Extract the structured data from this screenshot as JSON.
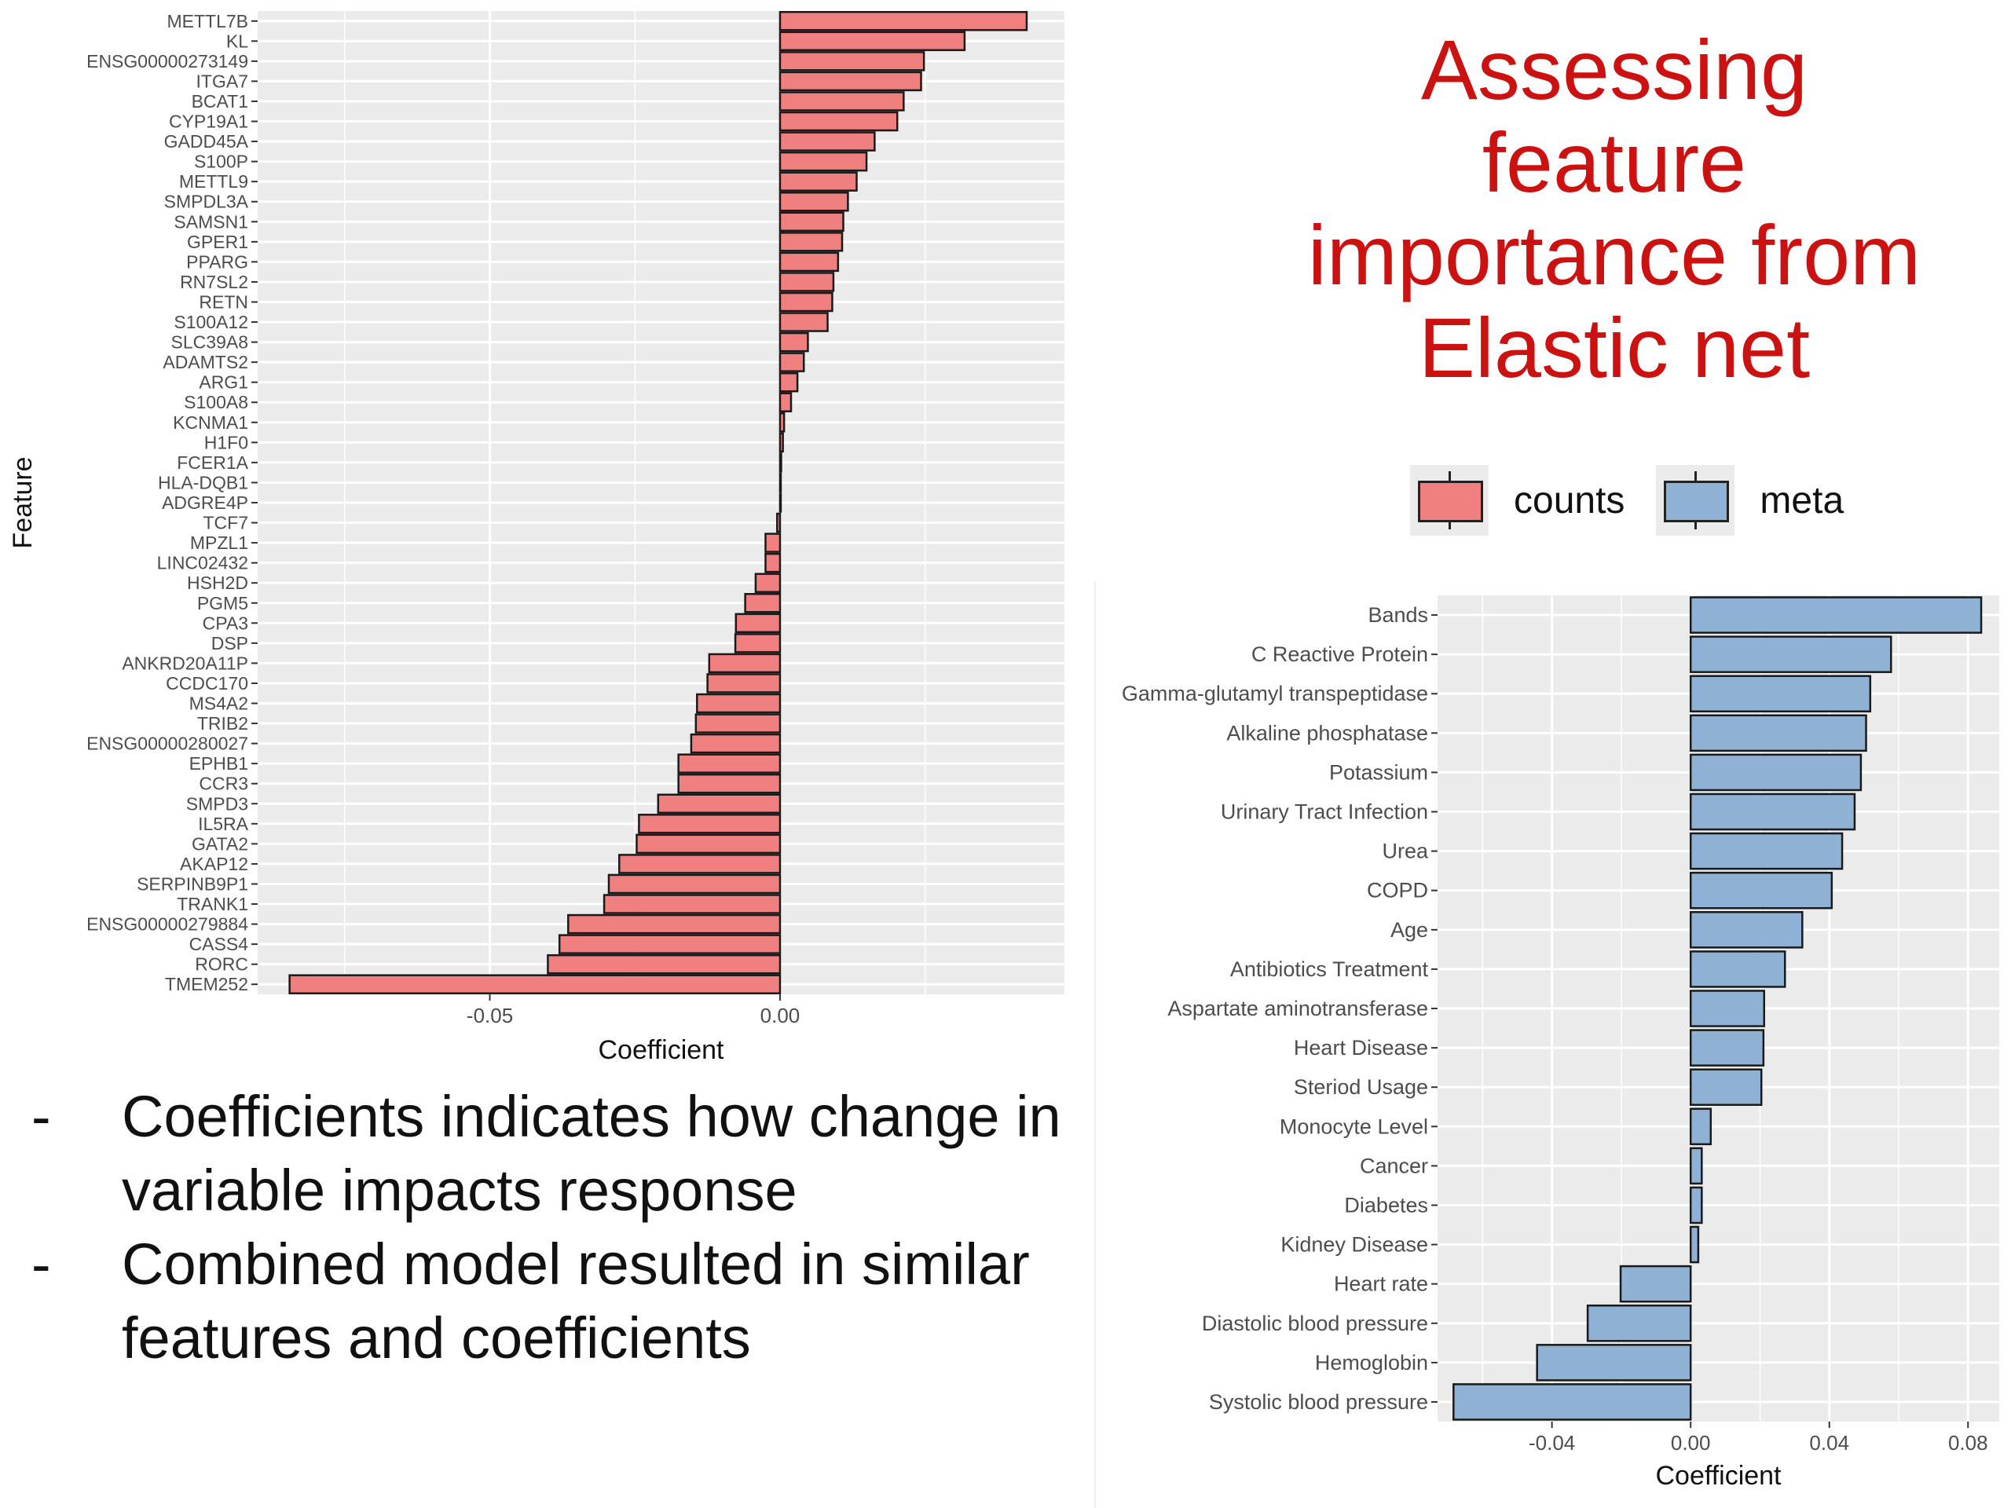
{
  "title_lines": [
    "Assessing",
    "feature",
    "importance from",
    "Elastic net"
  ],
  "legend": [
    {
      "label": "counts",
      "color": "#f08080"
    },
    {
      "label": "meta",
      "color": "#8fb1d4"
    }
  ],
  "bullets": [
    {
      "dash": "-",
      "text": "Coefficients indicates how change in variable impacts response"
    },
    {
      "dash": "-",
      "text": "Combined model resulted in similar features and coefficients"
    }
  ],
  "colors": {
    "panel_bg": "#ebebeb",
    "grid": "#ffffff",
    "bar_outline": "#1a1a1a",
    "title": "#cc1111"
  },
  "chart_data": [
    {
      "type": "bar",
      "orientation": "horizontal",
      "series_name": "counts",
      "color": "#f08080",
      "xlabel": "Coefficient",
      "ylabel": "Feature",
      "xlim": [
        -0.09,
        0.049
      ],
      "xticks": [
        -0.05,
        0.0
      ],
      "xtick_labels": [
        "-0.05",
        "0.00"
      ],
      "grid": true,
      "categories": [
        "METTL7B",
        "KL",
        "ENSG00000273149",
        "ITGA7",
        "BCAT1",
        "CYP19A1",
        "GADD45A",
        "S100P",
        "METTL9",
        "SMPDL3A",
        "SAMSN1",
        "GPER1",
        "PPARG",
        "RN7SL2",
        "RETN",
        "S100A12",
        "SLC39A8",
        "ADAMTS2",
        "ARG1",
        "S100A8",
        "KCNMA1",
        "H1F0",
        "FCER1A",
        "HLA-DQB1",
        "ADGRE4P",
        "TCF7",
        "MPZL1",
        "LINC02432",
        "HSH2D",
        "PGM5",
        "CPA3",
        "DSP",
        "ANKRD20A11P",
        "CCDC170",
        "MS4A2",
        "TRIB2",
        "ENSG00000280027",
        "EPHB1",
        "CCR3",
        "SMPD3",
        "IL5RA",
        "GATA2",
        "AKAP12",
        "SERPINB9P1",
        "TRANK1",
        "ENSG00000279884",
        "CASS4",
        "RORC",
        "TMEM252"
      ],
      "values": [
        0.0425,
        0.0318,
        0.0248,
        0.0243,
        0.0213,
        0.0202,
        0.0163,
        0.0149,
        0.0132,
        0.0117,
        0.0109,
        0.0107,
        0.01,
        0.0092,
        0.009,
        0.0082,
        0.0048,
        0.0041,
        0.003,
        0.0019,
        0.0007,
        0.0005,
        0.0002,
        0.0001,
        0.0,
        -0.0005,
        -0.0025,
        -0.0025,
        -0.0042,
        -0.006,
        -0.0076,
        -0.0077,
        -0.0122,
        -0.0125,
        -0.0143,
        -0.0145,
        -0.0153,
        -0.0175,
        -0.0175,
        -0.021,
        -0.0243,
        -0.0247,
        -0.0277,
        -0.0295,
        -0.0303,
        -0.0365,
        -0.038,
        -0.04,
        -0.0845
      ]
    },
    {
      "type": "bar",
      "orientation": "horizontal",
      "series_name": "meta",
      "color": "#8fb1d4",
      "xlabel": "Coefficient",
      "ylabel": "",
      "xlim": [
        -0.073,
        0.089
      ],
      "xticks": [
        -0.04,
        0.0,
        0.04,
        0.08
      ],
      "xtick_labels": [
        "-0.04",
        "0.00",
        "0.04",
        "0.08"
      ],
      "grid": true,
      "categories": [
        "Bands",
        "C Reactive Protein",
        "Gamma-glutamyl transpeptidase",
        "Alkaline phosphatase",
        "Potassium",
        "Urinary Tract Infection",
        "Urea",
        "COPD",
        "Age",
        "Antibiotics Treatment",
        "Aspartate aminotransferase",
        "Heart Disease",
        "Steriod Usage",
        "Monocyte Level",
        "Cancer",
        "Diabetes",
        "Kidney Disease",
        "Heart rate",
        "Diastolic blood pressure",
        "Hemoglobin",
        "Systolic blood pressure"
      ],
      "values": [
        0.0838,
        0.0578,
        0.0518,
        0.0506,
        0.0491,
        0.0473,
        0.0437,
        0.0407,
        0.0322,
        0.0272,
        0.0212,
        0.021,
        0.0204,
        0.0058,
        0.0032,
        0.0032,
        0.0022,
        -0.0202,
        -0.0297,
        -0.0443,
        -0.0684
      ]
    }
  ]
}
